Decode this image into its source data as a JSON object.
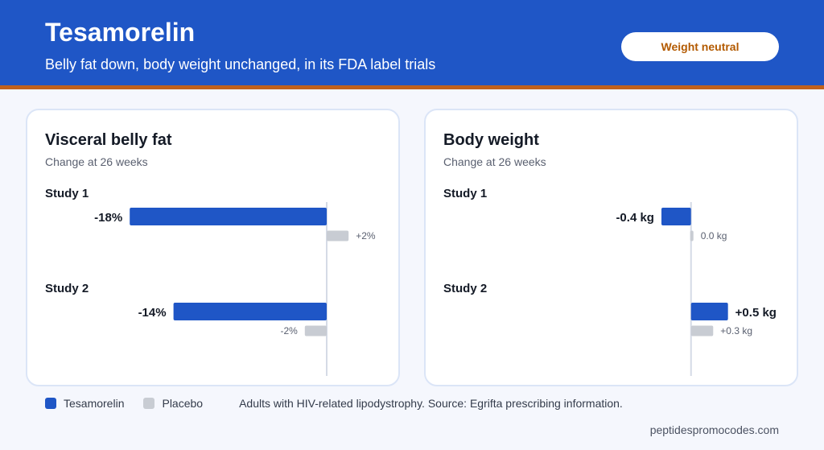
{
  "header": {
    "title": "Tesamorelin",
    "subtitle": "Belly fat down, body weight unchanged, in its FDA label trials",
    "badge": "Weight neutral"
  },
  "colors": {
    "header_bg": "#1f56c6",
    "accent_rule": "#c0611d",
    "treatment": "#1f56c6",
    "placebo": "#c8ccd3",
    "badge_text": "#b35a00"
  },
  "chart_data": [
    {
      "type": "bar",
      "orientation": "horizontal",
      "title": "Visceral belly fat",
      "subtitle": "Change at 26 weeks",
      "unit": "%",
      "categories": [
        "Study 1",
        "Study 2"
      ],
      "xlim": [
        -20,
        5
      ],
      "series": [
        {
          "name": "Tesamorelin",
          "values": [
            -18,
            -14
          ],
          "labels": [
            "-18%",
            "-14%"
          ]
        },
        {
          "name": "Placebo",
          "values": [
            2,
            -2
          ],
          "labels": [
            "+2%",
            "-2%"
          ]
        }
      ]
    },
    {
      "type": "bar",
      "orientation": "horizontal",
      "title": "Body weight",
      "subtitle": "Change at 26 weeks",
      "unit": "kg",
      "categories": [
        "Study 1",
        "Study 2"
      ],
      "xlim": [
        -2.5,
        1.2
      ],
      "series": [
        {
          "name": "Tesamorelin",
          "values": [
            -0.4,
            0.5
          ],
          "labels": [
            "-0.4 kg",
            "+0.5 kg"
          ]
        },
        {
          "name": "Placebo",
          "values": [
            0.0,
            0.3
          ],
          "labels": [
            "0.0 kg",
            "+0.3 kg"
          ]
        }
      ]
    }
  ],
  "legend": {
    "treatment": "Tesamorelin",
    "placebo": "Placebo",
    "note": "Adults with HIV-related lipodystrophy. Source: Egrifta prescribing information."
  },
  "footer": {
    "site": "peptidespromocodes.com"
  }
}
